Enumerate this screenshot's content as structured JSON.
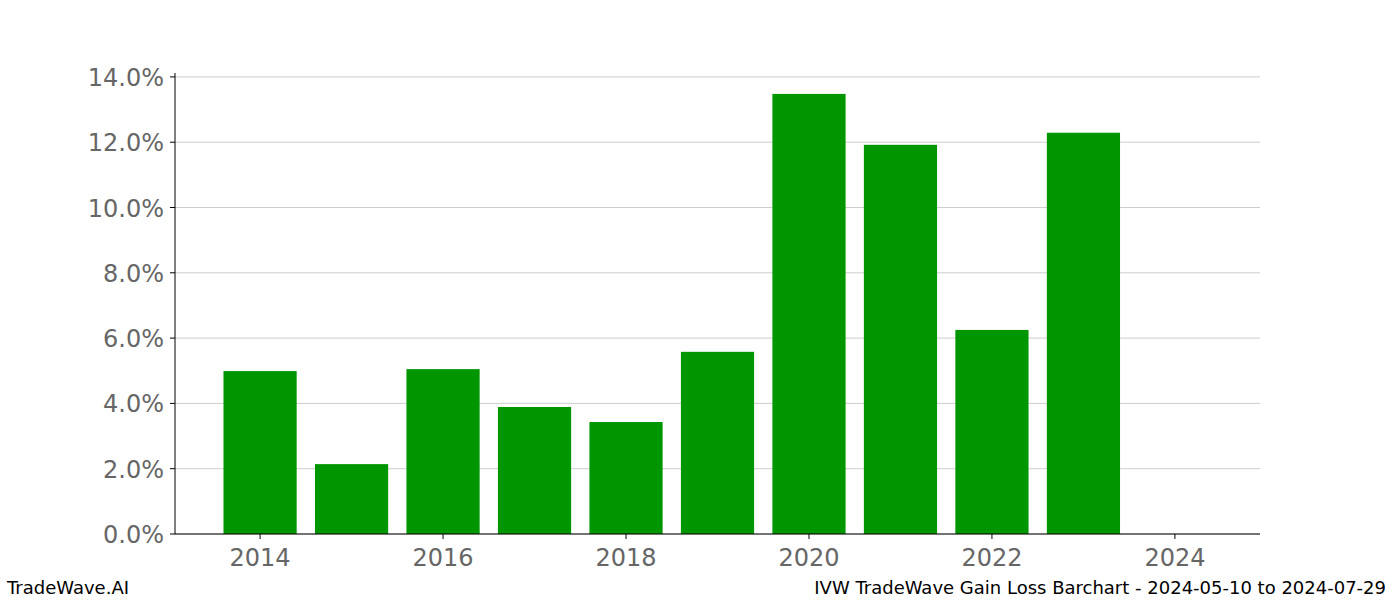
{
  "chart_data": {
    "type": "bar",
    "title": "IVW TradeWave Gain Loss Barchart - 2024-05-10 to 2024-07-29",
    "annotations": [
      "TradeWave.AI"
    ],
    "x": [
      2014,
      2015,
      2016,
      2017,
      2018,
      2019,
      2020,
      2021,
      2022,
      2023
    ],
    "values": [
      4.99,
      2.14,
      5.05,
      3.89,
      3.43,
      5.58,
      13.48,
      11.92,
      6.25,
      12.29
    ],
    "color": "#009600",
    "xlim": [
      2013.07,
      2024.93
    ],
    "xticks": [
      2014,
      2016,
      2018,
      2020,
      2022,
      2024
    ],
    "ylim": [
      0,
      14.12
    ],
    "yticks": [
      {
        "value": 0,
        "label": "0.0%"
      },
      {
        "value": 2,
        "label": "2.0%"
      },
      {
        "value": 4,
        "label": "4.0%"
      },
      {
        "value": 6,
        "label": "6.0%"
      },
      {
        "value": 8,
        "label": "8.0%"
      },
      {
        "value": 10,
        "label": "10.0%"
      },
      {
        "value": 12,
        "label": "12.0%"
      },
      {
        "value": 14,
        "label": "14.0%"
      }
    ],
    "grid": true
  }
}
